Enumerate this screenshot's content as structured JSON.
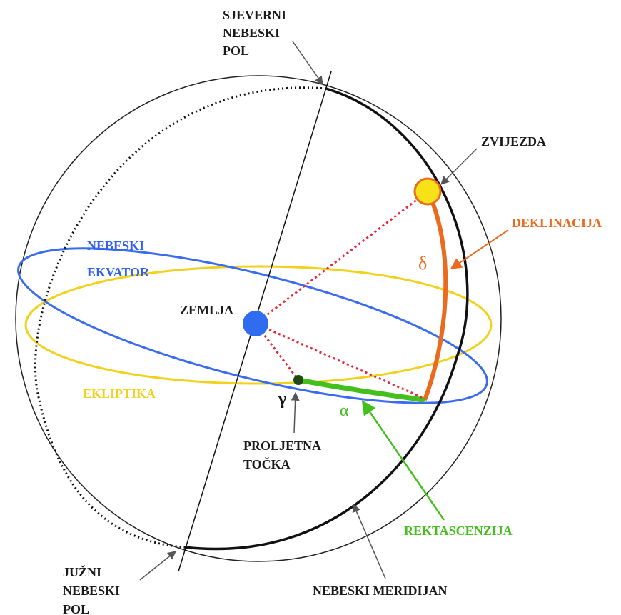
{
  "labels": {
    "north_pole": [
      "SJEVERNI",
      "NEBESKI",
      "POL"
    ],
    "south_pole": [
      "JUŽNI",
      "NEBESKI",
      "POL"
    ],
    "star": "ZVIJEZDA",
    "declination": "DEKLINACIJA",
    "delta": "δ",
    "celestial_equator": [
      "NEBESKI",
      "EKVATOR"
    ],
    "earth": "ZEMLJA",
    "ecliptic": "EKLIPTIKA",
    "gamma": "γ",
    "alpha": "α",
    "vernal_point": [
      "PROLJETNA",
      "TOČKA"
    ],
    "right_ascension": "REKTASCENZIJA",
    "meridian": "NEBESKI MERIDIJAN"
  },
  "colors": {
    "celestial_equator": "#3b6cf0",
    "ecliptic": "#f0d21e",
    "declination": "#ec6a1e",
    "right_ascension": "#44c01c",
    "star_fill": "#f7e21a",
    "earth": "#2f6cf0",
    "vernal_point": "#1f4a14",
    "construction_lines": "#e8283a"
  }
}
